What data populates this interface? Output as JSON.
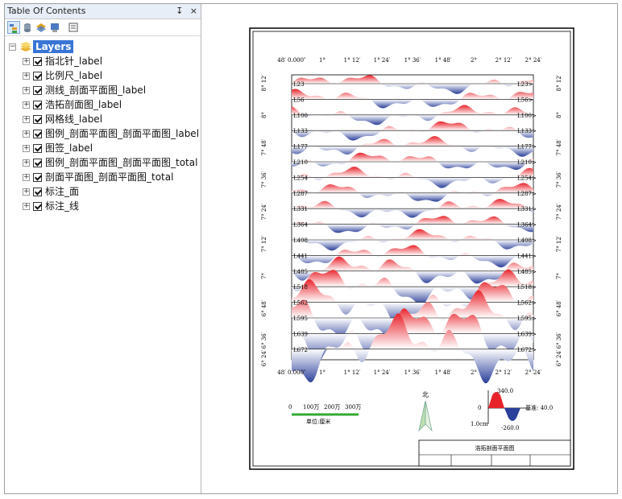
{
  "toc": {
    "title": "Table Of Contents",
    "pin": "↧",
    "close": "×",
    "root": "Layers",
    "layers": [
      "指北针_label",
      "比例尺_label",
      "测线_剖面平面图_label",
      "浩拓剖面图_label",
      "网格线_label",
      "图例_剖面平面图_剖面平面图_label",
      "图签_label",
      "图例_剖面平面图_剖面平面图_total",
      "剖面平面图_剖面平面图_total",
      "标注_面",
      "标注_线"
    ]
  },
  "map": {
    "top_ticks": [
      "48′ 0.000″",
      "1°",
      "1° 12′",
      "1° 24′",
      "1° 36′",
      "1° 48′",
      "2°",
      "2° 12′",
      "2° 24′"
    ],
    "bottom_ticks": [
      "48′ 0.000″",
      "1°",
      "1° 12′",
      "1° 24′",
      "1° 36′",
      "1° 48′",
      "2°",
      "2° 12′",
      "2° 24′"
    ],
    "left_ticks": [
      "8° 12′",
      "8°",
      "7° 48′",
      "7° 36′",
      "7° 24′",
      "7° 12′",
      "7°",
      "6° 48′",
      "6° 36′",
      "6° 24′"
    ],
    "right_ticks": [
      "8° 12′",
      "8°",
      "7° 48′",
      "7° 36′",
      "7° 24′",
      "7° 12′",
      "7°",
      "6° 48′",
      "6° 36′",
      "6° 24′"
    ],
    "left_lines": [
      "L23",
      "L56",
      "L100",
      "L133",
      "L177",
      "L210",
      "L254",
      "L287",
      "L331",
      "L364",
      "L408",
      "L441",
      "L485",
      "L518",
      "L562",
      "L595",
      "L639",
      "L672"
    ],
    "right_lines": [
      "L23>",
      "L56>",
      "L100>",
      "L133>",
      "L177>",
      "L210>",
      "L254>",
      "L287>",
      "L331>",
      "L364>",
      "L408>",
      "L441>",
      "L485>",
      "L518>",
      "L562>",
      "L595>",
      "L639>",
      "L672>"
    ],
    "scalebar": {
      "labels": [
        "0",
        "100万",
        "200万",
        "300万"
      ],
      "unit": "单位:厘米"
    },
    "north": "北",
    "legend": {
      "max": "340.0",
      "zero": "0",
      "min": "-260.0",
      "size": "1.0cm",
      "baseline": "基准: 40.0"
    },
    "title_block": "浩拓剖面平面图",
    "colors": {
      "positive": "#e8222a",
      "negative": "#2a3f9a"
    }
  }
}
